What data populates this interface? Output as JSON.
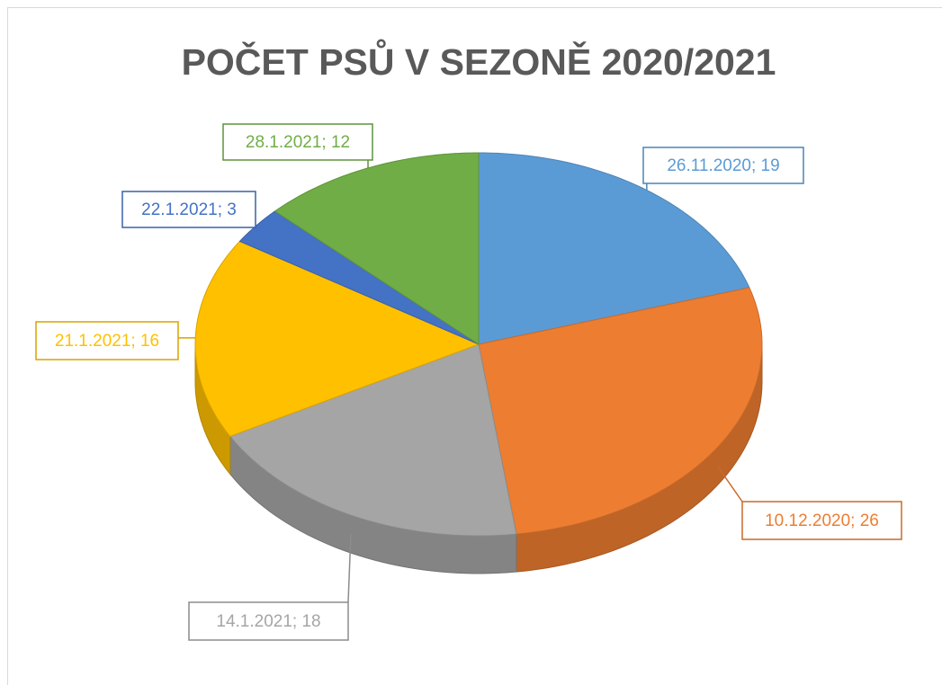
{
  "chart_data": {
    "type": "pie3d",
    "title": "POČET PSŮ V SEZONĚ 2020/2021",
    "categories": [
      "26.11.2020",
      "10.12.2020",
      "14.1.2021",
      "21.1.2021",
      "22.1.2021",
      "28.1.2021"
    ],
    "values": [
      19,
      26,
      18,
      16,
      3,
      12
    ],
    "value_labels": [
      "26.11.2020; 19",
      "10.12.2020; 26",
      "14.1.2021; 18",
      "21.1.2021; 16",
      "22.1.2021; 3",
      "28.1.2021; 12"
    ],
    "colors": [
      "#5b9bd5",
      "#ed7d31",
      "#a5a5a5",
      "#ffc000",
      "#4472c4",
      "#70ad47"
    ]
  }
}
